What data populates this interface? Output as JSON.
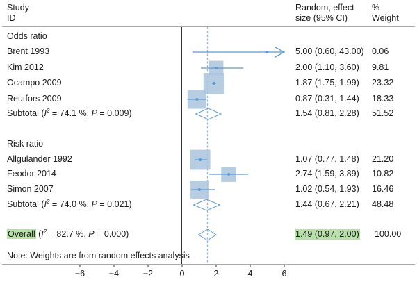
{
  "header": {
    "study_label_line1": "Study",
    "study_label_line2": "ID",
    "effect_label_line1": "Random, effect",
    "effect_label_line2": "size (95% CI)",
    "weight_label_line1": "%",
    "weight_label_line2": "Weight"
  },
  "colors": {
    "marker": "#5b9bd5",
    "box_fill": "#a9c4dd",
    "highlight": "#b7e1a8",
    "axis": "#333333",
    "divider": "#aaaaaa"
  },
  "note": "Note: Weights are from random effects analysis",
  "chart_data": {
    "type": "forest",
    "xlim": [
      -6,
      6
    ],
    "x_ticks": [
      "−6",
      "−4",
      "−2",
      "0",
      "2",
      "4",
      "6"
    ],
    "x_tick_values": [
      -6,
      -4,
      -2,
      0,
      2,
      4,
      6
    ],
    "reference_line": 0,
    "overall_line": 1.49,
    "groups": [
      {
        "label": "Odds ratio",
        "studies": [
          {
            "name": "Brent 1993",
            "es": 5.0,
            "lo": 0.6,
            "hi": 43.0,
            "ci_text": "5.00 (0.60, 43.00)",
            "weight": 0.06,
            "weight_text": "0.06",
            "arrow_right": true
          },
          {
            "name": "Kim 2012",
            "es": 2.0,
            "lo": 1.1,
            "hi": 3.6,
            "ci_text": "2.00 (1.10, 3.60)",
            "weight": 9.81,
            "weight_text": "9.81"
          },
          {
            "name": "Ocampo 2009",
            "es": 1.87,
            "lo": 1.75,
            "hi": 1.99,
            "ci_text": "1.87 (1.75, 1.99)",
            "weight": 23.32,
            "weight_text": "23.32"
          },
          {
            "name": "Reutfors 2009",
            "es": 0.87,
            "lo": 0.31,
            "hi": 1.44,
            "ci_text": "0.87 (0.31, 1.44)",
            "weight": 18.33,
            "weight_text": "18.33"
          }
        ],
        "subtotal": {
          "label_prefix": "Subtotal (",
          "i2_text": " = 74.1 %, ",
          "p_text": " = 0.009)",
          "es": 1.54,
          "lo": 0.81,
          "hi": 2.28,
          "ci_text": "1.54 (0.81, 2.28)",
          "weight_text": "51.52"
        }
      },
      {
        "label": "Risk ratio",
        "studies": [
          {
            "name": "Allgulander 1992",
            "es": 1.07,
            "lo": 0.77,
            "hi": 1.48,
            "ci_text": "1.07 (0.77, 1.48)",
            "weight": 21.2,
            "weight_text": "21.20"
          },
          {
            "name": "Feodor 2014",
            "es": 2.74,
            "lo": 1.59,
            "hi": 3.89,
            "ci_text": "2.74 (1.59, 3.89)",
            "weight": 10.82,
            "weight_text": "10.82"
          },
          {
            "name": "Simon 2007",
            "es": 1.02,
            "lo": 0.54,
            "hi": 1.93,
            "ci_text": "1.02 (0.54, 1.93)",
            "weight": 16.46,
            "weight_text": "16.46"
          }
        ],
        "subtotal": {
          "label_prefix": "Subtotal (",
          "i2_text": " = 74.0 %, ",
          "p_text": " = 0.021)",
          "es": 1.44,
          "lo": 0.67,
          "hi": 2.21,
          "ci_text": "1.44 (0.67, 2.21)",
          "weight_text": "48.48"
        }
      }
    ],
    "overall": {
      "label": "Overall",
      "label_rest_prefix": " (",
      "i2_text": " = 82.7 %, ",
      "p_text": " = 0.000)",
      "es": 1.49,
      "lo": 0.97,
      "hi": 2.0,
      "ci_text": "1.49 (0.97, 2.00)",
      "weight_text": "100.00"
    },
    "symbols": {
      "i2": "I",
      "i2_sup": "2",
      "p": "P"
    }
  }
}
